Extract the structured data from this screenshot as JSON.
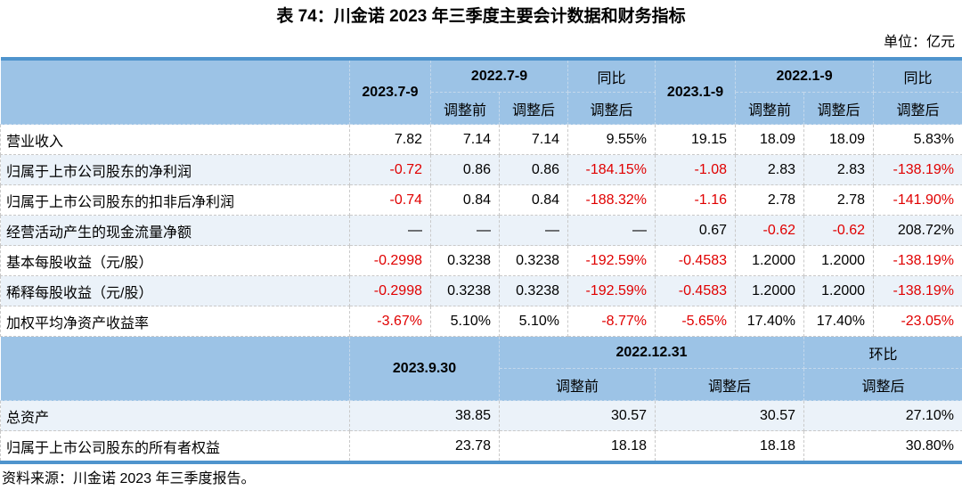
{
  "title": "表 74：川金诺 2023 年三季度主要会计数据和财务指标",
  "unit_label": "单位：亿元",
  "source": "资料来源：川金诺 2023 年三季度报告。",
  "colors": {
    "table_border": "#4F94CD",
    "header_bg": "#9CC3E6",
    "alt_row_bg": "#EBF2F9",
    "negative_text": "#E00000"
  },
  "quarter_table": {
    "headers": {
      "q_2023_7_9": "2023.7-9",
      "q_2022_7_9": "2022.7-9",
      "yoy_quarter": "同比",
      "ytd_2023_1_9": "2023.1-9",
      "ytd_2022_1_9": "2022.1-9",
      "yoy_ytd": "同比",
      "adj_before_q": "调整前",
      "adj_after_q": "调整后",
      "adj_after_yoy_q": "调整后",
      "adj_before_ytd": "调整前",
      "adj_after_ytd": "调整后",
      "adj_after_yoy_ytd": "调整后"
    },
    "rows": [
      {
        "label": "营业收入",
        "values": [
          "7.82",
          "7.14",
          "7.14",
          "9.55%",
          "19.15",
          "18.09",
          "18.09",
          "5.83%"
        ]
      },
      {
        "label": "归属于上市公司股东的净利润",
        "values": [
          "-0.72",
          "0.86",
          "0.86",
          "-184.15%",
          "-1.08",
          "2.83",
          "2.83",
          "-138.19%"
        ]
      },
      {
        "label": "归属于上市公司股东的扣非后净利润",
        "values": [
          "-0.74",
          "0.84",
          "0.84",
          "-188.32%",
          "-1.16",
          "2.78",
          "2.78",
          "-141.90%"
        ]
      },
      {
        "label": "经营活动产生的现金流量净额",
        "values": [
          "—",
          "—",
          "—",
          "—",
          "0.67",
          "-0.62",
          "-0.62",
          "208.72%"
        ]
      },
      {
        "label": "基本每股收益（元/股）",
        "values": [
          "-0.2998",
          "0.3238",
          "0.3238",
          "-192.59%",
          "-0.4583",
          "1.2000",
          "1.2000",
          "-138.19%"
        ]
      },
      {
        "label": "稀释每股收益（元/股）",
        "values": [
          "-0.2998",
          "0.3238",
          "0.3238",
          "-192.59%",
          "-0.4583",
          "1.2000",
          "1.2000",
          "-138.19%"
        ]
      },
      {
        "label": "加权平均净资产收益率",
        "values": [
          "-3.67%",
          "5.10%",
          "5.10%",
          "-8.77%",
          "-5.65%",
          "17.40%",
          "17.40%",
          "-23.05%"
        ]
      }
    ]
  },
  "balance_table": {
    "headers": {
      "date_2023_9_30": "2023.9.30",
      "date_2022_12_31": "2022.12.31",
      "qoq": "环比",
      "adj_before": "调整前",
      "adj_after": "调整后",
      "adj_after_qoq": "调整后"
    },
    "rows": [
      {
        "label": "总资产",
        "values": [
          "38.85",
          "30.57",
          "30.57",
          "27.10%"
        ]
      },
      {
        "label": "归属于上市公司股东的所有者权益",
        "values": [
          "23.78",
          "18.18",
          "18.18",
          "30.80%"
        ]
      }
    ]
  }
}
